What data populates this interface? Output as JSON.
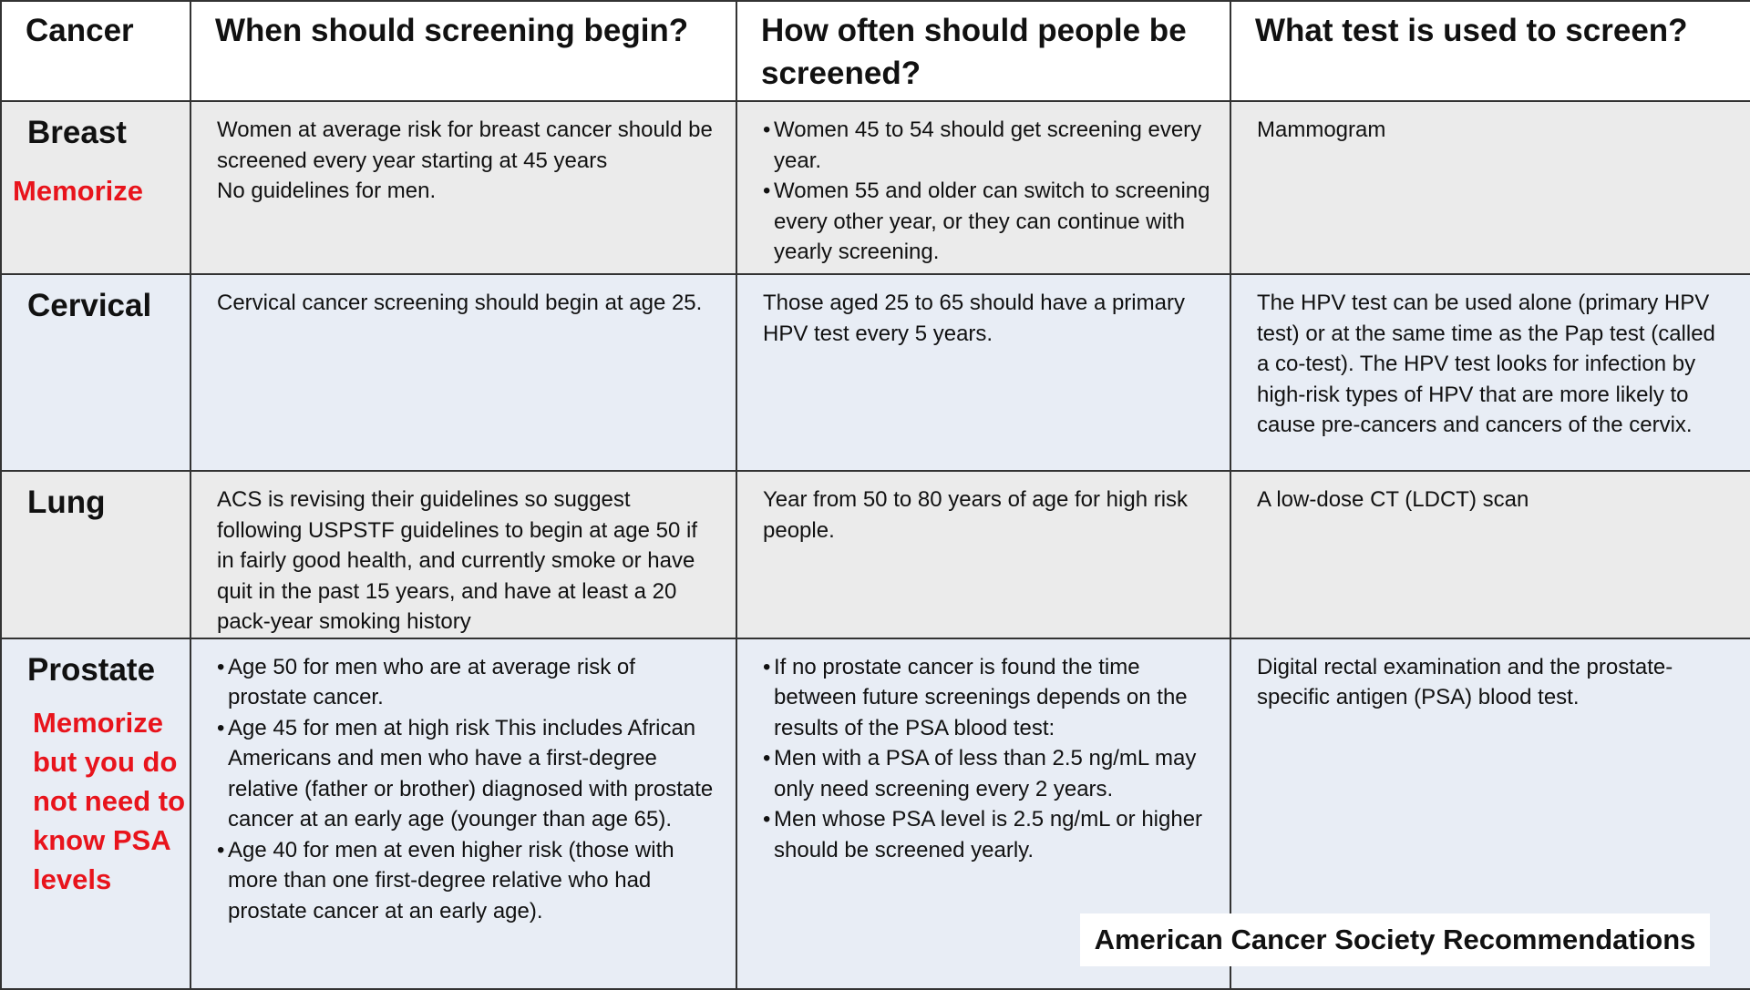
{
  "headers": [
    "Cancer",
    "When should screening begin?",
    "How often should people be screened?",
    "What test is used to screen?"
  ],
  "rows": [
    {
      "name": "Breast",
      "note": "Memorize",
      "begin": [
        "Women at average risk for breast cancer should be screened every year starting at 45 years",
        "No guidelines for men."
      ],
      "often": [
        "Women 45 to 54 should get screening every year.",
        "Women 55 and older can switch to screening every other year, or they can continue with yearly screening."
      ],
      "test": "Mammogram"
    },
    {
      "name": "Cervical",
      "begin": [
        "Cervical cancer screening should begin at age 25."
      ],
      "often": [
        "Those aged 25 to 65 should have a primary HPV test every 5 years."
      ],
      "test": "The HPV test can be used alone (primary HPV test) or at the same time as the Pap test (called a co-test). The HPV test looks for infection by high-risk types of HPV that are more likely to cause pre-cancers and cancers of the cervix."
    },
    {
      "name": "Lung",
      "begin": [
        "ACS is revising their guidelines so suggest following USPSTF guidelines to begin at age 50 if in fairly good health, and currently smoke or have quit in the past 15 years, and have at least a 20 pack-year smoking history"
      ],
      "often": [
        "Year from 50 to 80 years of age for high risk people."
      ],
      "test": "A low-dose CT (LDCT) scan"
    },
    {
      "name": "Prostate",
      "note": "Memorize but you do not need to know PSA levels",
      "begin": [
        "Age 50 for men who are at average risk of prostate cancer.",
        "Age 45 for men at high risk This includes African Americans and men who have a first-degree relative (father or brother) diagnosed with prostate cancer at an early age (younger than age 65).",
        "Age 40 for men at even higher risk (those with more than one first-degree relative who had prostate cancer at an early age)."
      ],
      "often": [
        "If no prostate cancer is found  the time between future screenings depends on the results of the PSA blood test:",
        "Men with a PSA of less than 2.5 ng/mL may only need screening every 2 years.",
        "Men whose PSA level is 2.5 ng/mL or higher should be screened yearly."
      ],
      "test": "Digital rectal examination and the prostate-specific antigen (PSA) blood test."
    }
  ],
  "footer": "American Cancer Society Recommendations",
  "colors": {
    "note": "#e8141c",
    "row_gray": "#ebebeb",
    "row_blue": "#e8edf5"
  }
}
